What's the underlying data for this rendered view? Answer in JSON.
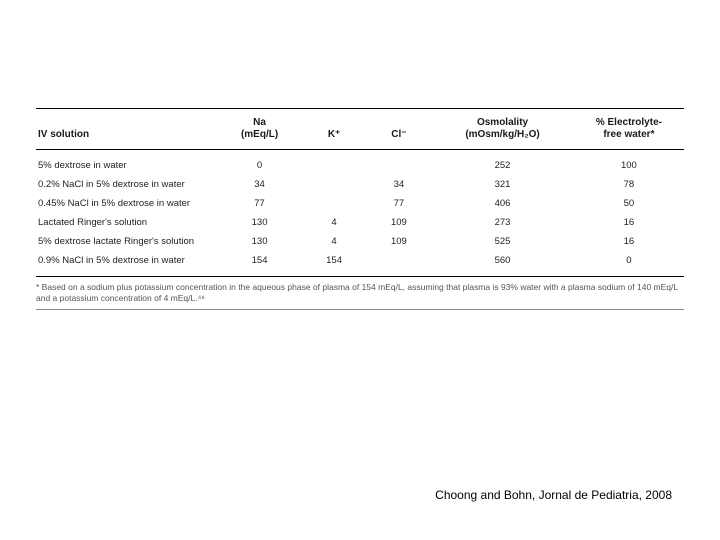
{
  "table": {
    "type": "table",
    "background_color": "#ffffff",
    "text_color": "#1a1a1a",
    "header_fontsize": 10,
    "body_fontsize": 9.5,
    "footnote_fontsize": 8.5,
    "border_color": "#000000",
    "columns": [
      {
        "key": "sol",
        "label": "IV solution",
        "align": "left",
        "width_pct": 28
      },
      {
        "key": "na",
        "label": "Na\n(mEq/L)",
        "align": "center",
        "width_pct": 13
      },
      {
        "key": "k",
        "label": "K⁺",
        "align": "center",
        "width_pct": 10
      },
      {
        "key": "cl",
        "label": "Cl⁻",
        "align": "center",
        "width_pct": 10
      },
      {
        "key": "osm",
        "label": "Osmolality\n(mOsm/kg/H₂O)",
        "align": "center",
        "width_pct": 22
      },
      {
        "key": "efw",
        "label": "% Electrolyte-\nfree water*",
        "align": "center",
        "width_pct": 17
      }
    ],
    "rows": [
      {
        "sol": "5% dextrose in water",
        "na": "0",
        "k": "",
        "cl": "",
        "osm": "252",
        "efw": "100"
      },
      {
        "sol": "0.2% NaCl in 5% dextrose in water",
        "na": "34",
        "k": "",
        "cl": "34",
        "osm": "321",
        "efw": "78"
      },
      {
        "sol": "0.45% NaCl in 5% dextrose in water",
        "na": "77",
        "k": "",
        "cl": "77",
        "osm": "406",
        "efw": "50"
      },
      {
        "sol": "Lactated Ringer's solution",
        "na": "130",
        "k": "4",
        "cl": "109",
        "osm": "273",
        "efw": "16"
      },
      {
        "sol": "5% dextrose lactate Ringer's solution",
        "na": "130",
        "k": "4",
        "cl": "109",
        "osm": "525",
        "efw": "16"
      },
      {
        "sol": "0.9% NaCl in 5% dextrose in water",
        "na": "154",
        "k": "154",
        "cl": "",
        "osm": "560",
        "efw": "0"
      }
    ],
    "footnote": "* Based on a sodium plus potassium concentration in the aqueous phase of plasma of 154 mEq/L, assuming that plasma is 93% water with a plasma sodium of 140 mEq/L and a potassium concentration of 4 mEq/L.⁴⁸"
  },
  "citation": "Choong and Bohn, Jornal de Pediatria, 2008"
}
